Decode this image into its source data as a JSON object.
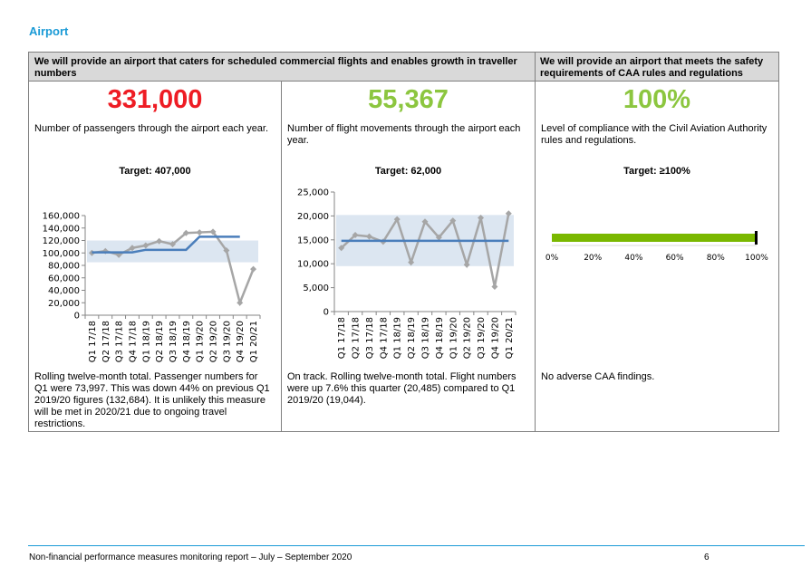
{
  "section_title": "Airport",
  "headers": {
    "left": "We will provide an airport that caters for scheduled commercial flights and enables growth in traveller numbers",
    "right": "We will provide an airport that meets the safety requirements of CAA rules and regulations"
  },
  "measures": [
    {
      "value": "331,000",
      "value_color": "#ee1c24",
      "description": "Number of passengers through the airport each year.",
      "target": "Target: 407,000",
      "note": "Rolling twelve-month total. Passenger numbers for Q1 were 73,997. This was down 44% on previous Q1 2019/20 figures (132,684). It is unlikely this measure will be met in 2020/21 due to ongoing travel restrictions."
    },
    {
      "value": "55,367",
      "value_color": "#8cc63f",
      "description": "Number of flight movements through the airport each year.",
      "target": "Target: 62,000",
      "note": "On track. Rolling twelve-month total. Flight numbers were up 7.6% this quarter (20,485) compared to Q1 2019/20 (19,044)."
    },
    {
      "value": "100%",
      "value_color": "#8cc63f",
      "description": "Level of compliance with the Civil Aviation Authority rules and regulations.",
      "target": "Target: ≥100%",
      "note": "No adverse CAA findings."
    }
  ],
  "chart_data": [
    {
      "type": "line",
      "categories": [
        "Q1 17/18",
        "Q2 17/18",
        "Q3 17/18",
        "Q4 17/18",
        "Q1 18/19",
        "Q2 18/19",
        "Q3 18/19",
        "Q4 18/19",
        "Q1 19/20",
        "Q2 19/20",
        "Q3 19/20",
        "Q4 19/20",
        "Q1 20/21"
      ],
      "series": [
        {
          "values": [
            100000,
            103000,
            97000,
            108000,
            112000,
            119000,
            114000,
            132000,
            133000,
            134000,
            104000,
            20000,
            74000
          ],
          "color": "#a6a6a6"
        },
        {
          "values": [
            101000,
            101000,
            101000,
            101000,
            105000,
            105000,
            105000,
            105000,
            126000,
            126000,
            126000,
            126000,
            null
          ],
          "color": "#4a7ebb"
        }
      ],
      "band": [
        85000,
        120000
      ],
      "band_color": "#dce6f1",
      "ylim": [
        0,
        160000
      ],
      "yticks": [
        "0",
        "20,000",
        "40,000",
        "60,000",
        "80,000",
        "100,000",
        "120,000",
        "140,000",
        "160,000"
      ],
      "ytick_values": [
        0,
        20000,
        40000,
        60000,
        80000,
        100000,
        120000,
        140000,
        160000
      ]
    },
    {
      "type": "line",
      "categories": [
        "Q1 17/18",
        "Q2 17/18",
        "Q3 17/18",
        "Q4 17/18",
        "Q1 18/19",
        "Q2 18/19",
        "Q3 18/19",
        "Q4 18/19",
        "Q1 19/20",
        "Q2 19/20",
        "Q3 19/20",
        "Q4 19/20",
        "Q1 20/21"
      ],
      "series": [
        {
          "values": [
            13300,
            16000,
            15700,
            14600,
            19300,
            10300,
            18800,
            15500,
            19000,
            9800,
            19600,
            5200,
            20500
          ],
          "color": "#a6a6a6"
        },
        {
          "values": [
            14800,
            14800,
            14800,
            14800,
            14800,
            14800,
            14800,
            14800,
            14800,
            14800,
            14800,
            14800,
            14800
          ],
          "color": "#4a7ebb"
        }
      ],
      "band": [
        9500,
        20200
      ],
      "band_color": "#dce6f1",
      "ylim": [
        0,
        25000
      ],
      "yticks": [
        "0",
        "5,000",
        "10,000",
        "15,000",
        "20,000",
        "25,000"
      ],
      "ytick_values": [
        0,
        5000,
        10000,
        15000,
        20000,
        25000
      ]
    },
    {
      "type": "bar",
      "orientation": "horizontal",
      "values": [
        100
      ],
      "color": "#7ab800",
      "marker_color": "#000000",
      "xlim": [
        0,
        100
      ],
      "xticks": [
        "0%",
        "20%",
        "40%",
        "60%",
        "80%",
        "100%"
      ],
      "xtick_values": [
        0,
        20,
        40,
        60,
        80,
        100
      ]
    }
  ],
  "footer": {
    "text": "Non-financial performance measures monitoring report – July – September 2020",
    "page": "6"
  }
}
